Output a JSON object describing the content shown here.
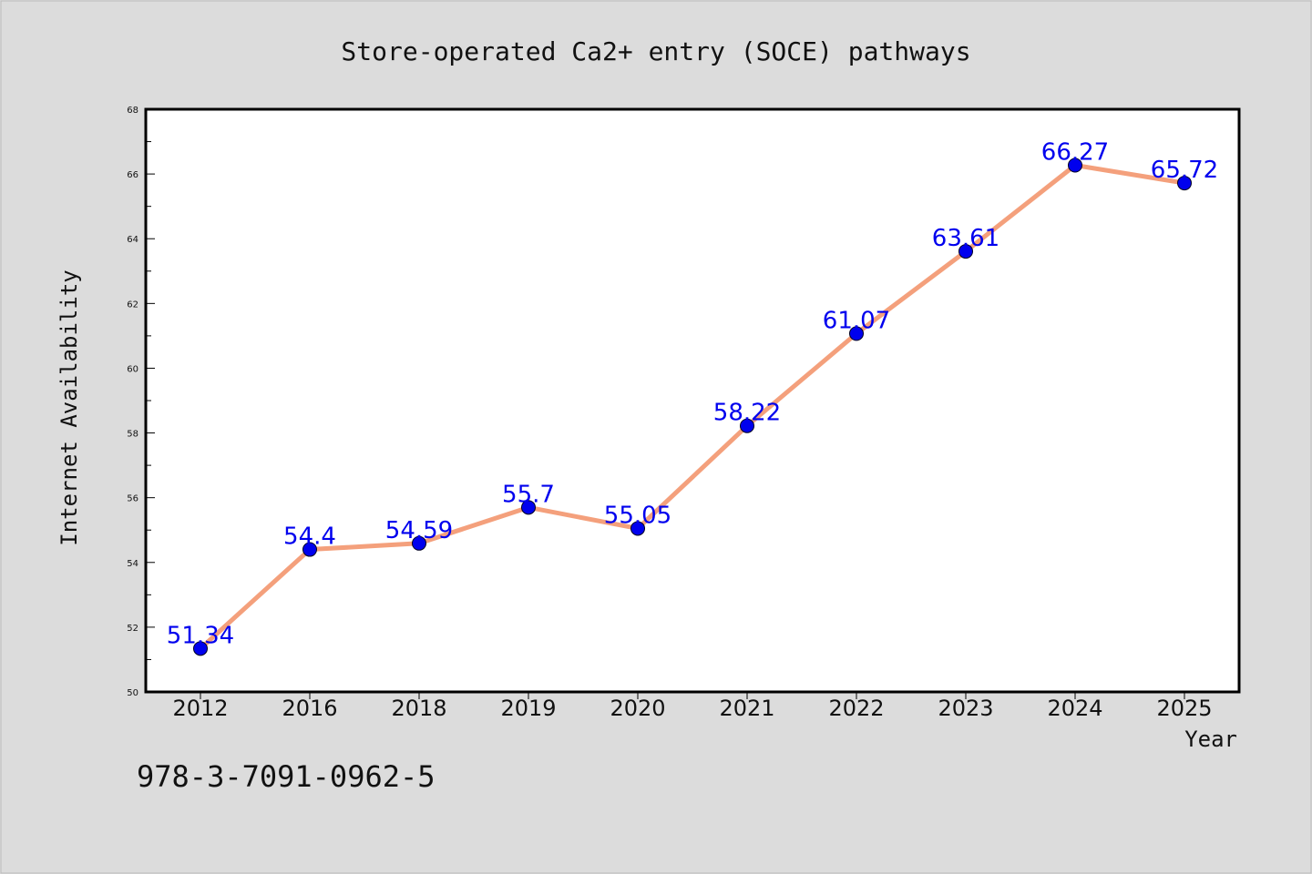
{
  "chart_data": {
    "type": "line",
    "title": "Store-operated Ca2+ entry (SOCE) pathways",
    "xlabel": "Year",
    "ylabel": "Internet Availability",
    "categories": [
      "2012",
      "2016",
      "2018",
      "2019",
      "2020",
      "2021",
      "2022",
      "2023",
      "2024",
      "2025"
    ],
    "values": [
      51.34,
      54.4,
      54.59,
      55.7,
      55.05,
      58.22,
      61.07,
      63.61,
      66.27,
      65.72
    ],
    "data_labels": [
      "51.34",
      "54.4",
      "54.59",
      "55.7",
      "55.05",
      "58.22",
      "61.07",
      "63.61",
      "66.27",
      "65.72"
    ],
    "ylim": [
      50,
      68
    ],
    "yticks": [
      50,
      52,
      54,
      56,
      58,
      60,
      62,
      64,
      66,
      68
    ],
    "grid": false,
    "legend": "none",
    "line_color": "#f4a07c",
    "marker_color": "#0000ee",
    "label_color": "#0000ee"
  },
  "footnote": "978-3-7091-0962-5"
}
